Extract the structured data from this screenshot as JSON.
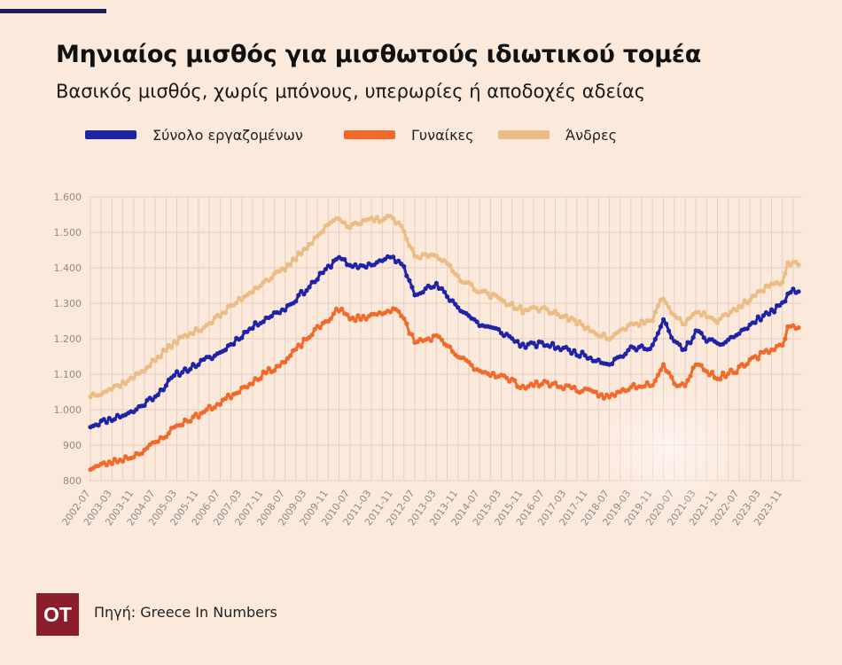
{
  "header": {
    "title": "Μηνιαίος μισθός για μισθωτούς ιδιωτικού τομέα",
    "subtitle": "Βασικός μισθός, χωρίς μπόνους, υπερωρίες ή αποδοχές αδείας"
  },
  "footer": {
    "logo_text": "OT",
    "source": "Πηγή: Greece In Numbers"
  },
  "colors": {
    "background": "#fbe9dc",
    "total": "#1f23a6",
    "women": "#f26a2a",
    "men": "#ebbd84",
    "grid": "#e6cfc0",
    "axis_text": "#8a8a8a"
  },
  "chart_data": {
    "type": "line",
    "title": "Μηνιαίος μισθός για μισθωτούς ιδιωτικού τομέα",
    "xlabel": "",
    "ylabel": "",
    "ylim": [
      800,
      1600
    ],
    "y_ticks": [
      800,
      900,
      1000,
      1100,
      1200,
      1300,
      1400,
      1500,
      1600
    ],
    "y_tick_labels": [
      "800",
      "900",
      "1.000",
      "1.100",
      "1.200",
      "1.300",
      "1.400",
      "1.500",
      "1.600"
    ],
    "x_start": "2002-07",
    "x_end": "2024-05",
    "x_ticks": [
      "2002-07",
      "2003-03",
      "2003-11",
      "2004-07",
      "2005-03",
      "2005-11",
      "2006-07",
      "2007-03",
      "2007-11",
      "2008-07",
      "2009-03",
      "2009-11",
      "2010-07",
      "2011-03",
      "2011-11",
      "2012-07",
      "2013-03",
      "2013-11",
      "2014-07",
      "2015-03",
      "2015-11",
      "2016-07",
      "2017-03",
      "2017-11",
      "2018-07",
      "2019-03",
      "2019-11",
      "2020-07",
      "2021-03",
      "2021-11",
      "2022-07",
      "2023-03",
      "2023-11"
    ],
    "grid": true,
    "legend_position": "top-left",
    "series": [
      {
        "name": "Σύνολο εργαζομένων",
        "color": "#1f23a6",
        "keyframes": [
          [
            "2002-07",
            955
          ],
          [
            "2003-03",
            975
          ],
          [
            "2003-11",
            995
          ],
          [
            "2004-07",
            1040
          ],
          [
            "2005-03",
            1100
          ],
          [
            "2005-11",
            1130
          ],
          [
            "2006-07",
            1160
          ],
          [
            "2007-03",
            1210
          ],
          [
            "2007-11",
            1255
          ],
          [
            "2008-07",
            1285
          ],
          [
            "2009-03",
            1340
          ],
          [
            "2009-11",
            1400
          ],
          [
            "2010-03",
            1435
          ],
          [
            "2010-07",
            1400
          ],
          [
            "2011-03",
            1410
          ],
          [
            "2011-11",
            1430
          ],
          [
            "2012-03",
            1400
          ],
          [
            "2012-07",
            1330
          ],
          [
            "2013-03",
            1350
          ],
          [
            "2013-11",
            1290
          ],
          [
            "2014-07",
            1240
          ],
          [
            "2015-03",
            1220
          ],
          [
            "2015-11",
            1180
          ],
          [
            "2016-07",
            1185
          ],
          [
            "2017-03",
            1170
          ],
          [
            "2017-11",
            1150
          ],
          [
            "2018-07",
            1130
          ],
          [
            "2019-03",
            1170
          ],
          [
            "2019-11",
            1180
          ],
          [
            "2020-03",
            1250
          ],
          [
            "2020-07",
            1190
          ],
          [
            "2020-11",
            1170
          ],
          [
            "2021-03",
            1220
          ],
          [
            "2021-11",
            1180
          ],
          [
            "2022-07",
            1215
          ],
          [
            "2023-03",
            1260
          ],
          [
            "2023-11",
            1295
          ],
          [
            "2024-01",
            1330
          ],
          [
            "2024-05",
            1335
          ]
        ]
      },
      {
        "name": "Γυναίκες",
        "color": "#f26a2a",
        "keyframes": [
          [
            "2002-07",
            835
          ],
          [
            "2003-03",
            852
          ],
          [
            "2003-11",
            870
          ],
          [
            "2004-07",
            905
          ],
          [
            "2005-03",
            955
          ],
          [
            "2005-11",
            985
          ],
          [
            "2006-07",
            1020
          ],
          [
            "2007-03",
            1060
          ],
          [
            "2007-11",
            1100
          ],
          [
            "2008-07",
            1135
          ],
          [
            "2009-03",
            1200
          ],
          [
            "2009-11",
            1255
          ],
          [
            "2010-03",
            1285
          ],
          [
            "2010-07",
            1255
          ],
          [
            "2011-03",
            1265
          ],
          [
            "2011-11",
            1285
          ],
          [
            "2012-03",
            1255
          ],
          [
            "2012-07",
            1190
          ],
          [
            "2013-03",
            1205
          ],
          [
            "2013-11",
            1150
          ],
          [
            "2014-07",
            1110
          ],
          [
            "2015-03",
            1095
          ],
          [
            "2015-11",
            1065
          ],
          [
            "2016-07",
            1075
          ],
          [
            "2017-03",
            1065
          ],
          [
            "2017-11",
            1050
          ],
          [
            "2018-07",
            1035
          ],
          [
            "2019-03",
            1065
          ],
          [
            "2019-11",
            1075
          ],
          [
            "2020-03",
            1130
          ],
          [
            "2020-07",
            1075
          ],
          [
            "2020-11",
            1070
          ],
          [
            "2021-03",
            1130
          ],
          [
            "2021-11",
            1090
          ],
          [
            "2022-07",
            1115
          ],
          [
            "2023-03",
            1155
          ],
          [
            "2023-11",
            1185
          ],
          [
            "2024-01",
            1230
          ],
          [
            "2024-05",
            1238
          ]
        ]
      },
      {
        "name": "Άνδρες",
        "color": "#ebbd84",
        "keyframes": [
          [
            "2002-07",
            1040
          ],
          [
            "2003-03",
            1060
          ],
          [
            "2003-11",
            1090
          ],
          [
            "2004-07",
            1140
          ],
          [
            "2005-03",
            1195
          ],
          [
            "2005-11",
            1225
          ],
          [
            "2006-07",
            1265
          ],
          [
            "2007-03",
            1315
          ],
          [
            "2007-11",
            1360
          ],
          [
            "2008-07",
            1395
          ],
          [
            "2009-03",
            1460
          ],
          [
            "2009-11",
            1520
          ],
          [
            "2010-03",
            1545
          ],
          [
            "2010-07",
            1515
          ],
          [
            "2011-03",
            1535
          ],
          [
            "2011-11",
            1540
          ],
          [
            "2012-03",
            1500
          ],
          [
            "2012-07",
            1430
          ],
          [
            "2013-03",
            1440
          ],
          [
            "2013-11",
            1375
          ],
          [
            "2014-07",
            1335
          ],
          [
            "2015-03",
            1310
          ],
          [
            "2015-11",
            1280
          ],
          [
            "2016-07",
            1285
          ],
          [
            "2017-03",
            1260
          ],
          [
            "2017-11",
            1230
          ],
          [
            "2018-07",
            1200
          ],
          [
            "2019-03",
            1240
          ],
          [
            "2019-11",
            1250
          ],
          [
            "2020-03",
            1320
          ],
          [
            "2020-07",
            1260
          ],
          [
            "2020-11",
            1240
          ],
          [
            "2021-03",
            1280
          ],
          [
            "2021-11",
            1250
          ],
          [
            "2022-07",
            1290
          ],
          [
            "2023-03",
            1335
          ],
          [
            "2023-11",
            1365
          ],
          [
            "2024-01",
            1410
          ],
          [
            "2024-05",
            1415
          ]
        ]
      }
    ]
  }
}
